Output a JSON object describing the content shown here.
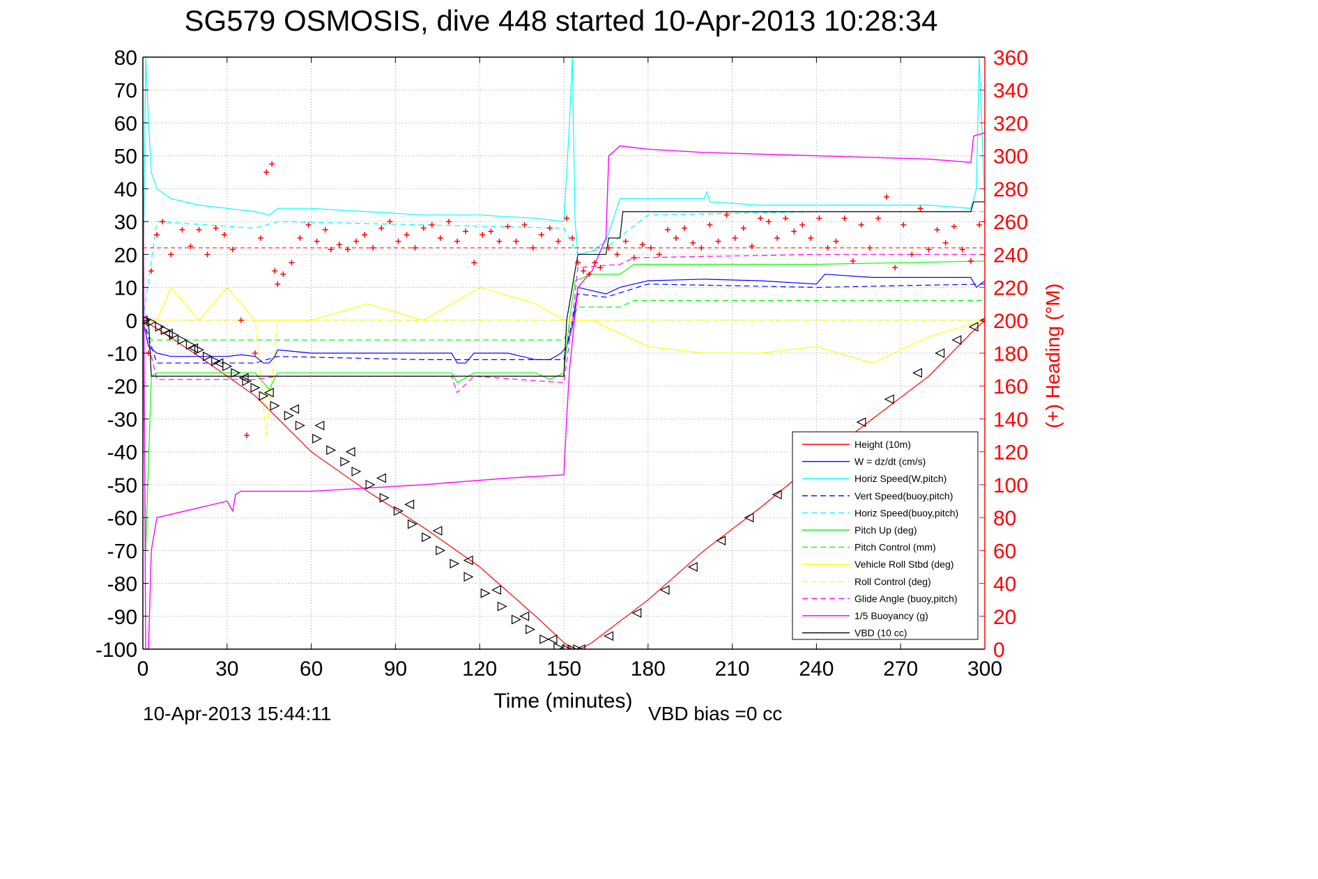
{
  "chart_data": {
    "type": "line",
    "title": "SG579 OSMOSIS, dive 448 started 10-Apr-2013 10:28:34",
    "xlabel": "Time (minutes)",
    "ylabel": "",
    "y2label": "(+) Heading (°M)",
    "xlim": [
      0,
      300
    ],
    "ylim": [
      -100,
      80
    ],
    "y2lim": [
      0,
      360
    ],
    "xticks": [
      "0",
      "30",
      "60",
      "90",
      "120",
      "150",
      "180",
      "210",
      "240",
      "270",
      "300"
    ],
    "yticks": [
      "80",
      "70",
      "60",
      "50",
      "40",
      "30",
      "20",
      "10",
      "0",
      "-10",
      "-20",
      "-30",
      "-40",
      "-50",
      "-60",
      "-70",
      "-80",
      "-90",
      "-100"
    ],
    "y2ticks": [
      "360",
      "340",
      "320",
      "300",
      "280",
      "260",
      "240",
      "220",
      "200",
      "180",
      "160",
      "140",
      "120",
      "100",
      "80",
      "60",
      "40",
      "20",
      "0"
    ],
    "grid": true,
    "legend_position": "bottom-right",
    "bottom_left_text": "10-Apr-2013 15:44:11",
    "bottom_right_text": "VBD bias =0 cc",
    "colors": {
      "height": "#ff0000",
      "w": "#0000ff",
      "horiz_speed": "#00ffff",
      "pitch": "#00ff00",
      "roll": "#ffff00",
      "glide": "#ff00ff",
      "buoyancy": "#ff00ff",
      "vbd": "#000000",
      "heading": "#ff0000",
      "right_axis": "#ff0000"
    },
    "series": [
      {
        "key": "height",
        "name": "Height (10m)",
        "color": "#ff0000",
        "style": "solid",
        "width": 1,
        "x": [
          0,
          5,
          20,
          40,
          60,
          80,
          100,
          120,
          140,
          150,
          153,
          156,
          160,
          180,
          200,
          220,
          240,
          260,
          280,
          295,
          300
        ],
        "y": [
          0,
          -2.5,
          -11,
          -23,
          -40,
          -52,
          -63,
          -75,
          -90,
          -98,
          -100,
          -100,
          -98,
          -85,
          -70,
          -57,
          -43,
          -30,
          -17,
          -4,
          0
        ]
      },
      {
        "key": "w",
        "name": "W = dz/dt (cm/s)",
        "color": "#0000ff",
        "style": "solid",
        "width": 1,
        "x": [
          0,
          2,
          5,
          10,
          20,
          30,
          35,
          40,
          43,
          45,
          47,
          48,
          60,
          80,
          100,
          110,
          112,
          115,
          118,
          130,
          140,
          145,
          149,
          151,
          153,
          155,
          160,
          165,
          170,
          180,
          200,
          220,
          240,
          243,
          260,
          280,
          295,
          297,
          300
        ],
        "y": [
          0,
          -8,
          -10,
          -11,
          -11,
          -11,
          -10.5,
          -11,
          -13,
          -13,
          -11,
          -9,
          -10,
          -10,
          -10,
          -10,
          -13,
          -13,
          -10,
          -10,
          -12,
          -12,
          -10,
          -8,
          -2,
          10,
          9,
          8,
          10,
          12,
          12.5,
          12,
          11,
          14,
          13,
          13,
          13,
          10,
          12
        ]
      },
      {
        "key": "horiz_speed",
        "name": "Horiz Speed(W,pitch)",
        "color": "#00ffff",
        "style": "solid",
        "width": 1,
        "x": [
          0,
          1,
          2,
          3,
          5,
          10,
          20,
          30,
          40,
          45,
          48,
          60,
          80,
          100,
          120,
          140,
          150,
          152,
          153,
          154,
          155,
          160,
          165,
          170,
          180,
          200,
          201,
          202,
          220,
          240,
          260,
          280,
          295,
          297,
          298,
          300
        ],
        "y": [
          0,
          80,
          60,
          45,
          40,
          37,
          35,
          34,
          33,
          32,
          34,
          34,
          33,
          32,
          32,
          31,
          30,
          60,
          80,
          30,
          20,
          21,
          24,
          37,
          37,
          37,
          39,
          36,
          35,
          35,
          35,
          35,
          34,
          40,
          80,
          35
        ]
      },
      {
        "key": "vert_speed_buoy",
        "name": "Vert Speed(buoy,pitch)",
        "color": "#0000ff",
        "style": "dashed",
        "width": 1,
        "x": [
          0,
          5,
          40,
          48,
          100,
          150,
          155,
          165,
          180,
          240,
          300
        ],
        "y": [
          0,
          -13,
          -13,
          -11,
          -12,
          -12,
          8,
          7,
          11,
          10,
          11
        ]
      },
      {
        "key": "horiz_speed_buoy",
        "name": "Horiz Speed(buoy,pitch)",
        "color": "#00ffff",
        "style": "dashed",
        "width": 1,
        "x": [
          0,
          5,
          40,
          48,
          100,
          150,
          155,
          165,
          180,
          240,
          300
        ],
        "y": [
          0,
          30,
          28,
          30,
          29,
          28,
          20,
          22,
          32,
          33,
          33
        ]
      },
      {
        "key": "pitch_up",
        "name": "Pitch Up (deg)",
        "color": "#00ff00",
        "style": "solid",
        "width": 1,
        "x": [
          0,
          1,
          3,
          5,
          40,
          45,
          48,
          100,
          110,
          112,
          118,
          140,
          145,
          150,
          152,
          154,
          160,
          170,
          175,
          240,
          300
        ],
        "y": [
          0,
          -70,
          -17,
          -16,
          -16,
          -21,
          -16,
          -16,
          -16,
          -19,
          -16,
          -16,
          -18,
          -16,
          0,
          12,
          14,
          14,
          17,
          17,
          18
        ]
      },
      {
        "key": "pitch_control",
        "name": "Pitch Control (mm)",
        "color": "#00ff00",
        "style": "dashed",
        "width": 1,
        "x": [
          0,
          3,
          10,
          40,
          150,
          153,
          155,
          170,
          175,
          240,
          300
        ],
        "y": [
          0,
          -6,
          -6,
          -6,
          -6,
          0,
          4,
          4,
          6,
          6,
          6
        ]
      },
      {
        "key": "vehicle_roll",
        "name": "Vehicle Roll Stbd (deg)",
        "color": "#ffff00",
        "style": "solid",
        "width": 1,
        "x": [
          0,
          2,
          5,
          10,
          20,
          30,
          40,
          50,
          60,
          80,
          100,
          120,
          140,
          150,
          152,
          155,
          160,
          180,
          200,
          220,
          240,
          260,
          280,
          300
        ],
        "y": [
          0,
          0,
          0,
          10,
          0,
          10,
          0,
          0,
          0,
          5,
          0,
          10,
          5,
          0,
          0,
          0,
          0,
          -8,
          -10,
          -10,
          -8,
          -13,
          -5,
          0
        ]
      },
      {
        "key": "roll_control",
        "name": "Roll Control (deg)",
        "color": "#ffff00",
        "style": "dashed",
        "width": 1,
        "x": [
          0,
          40,
          44,
          48,
          150,
          155,
          240,
          300
        ],
        "y": [
          0,
          0,
          -35,
          0,
          0,
          0,
          0,
          0
        ]
      },
      {
        "key": "glide_angle",
        "name": "Glide Angle (buoy,pitch)",
        "color": "#ff00ff",
        "style": "dashed",
        "width": 1,
        "x": [
          0,
          5,
          40,
          48,
          110,
          112,
          118,
          150,
          153,
          155,
          170,
          175,
          240,
          300
        ],
        "y": [
          0,
          -18,
          -18,
          -17,
          -17,
          -22,
          -17,
          -19,
          0,
          16,
          17,
          19,
          20,
          20
        ]
      },
      {
        "key": "buoyancy",
        "name": "1/5 Buoyancy (g)",
        "color": "#ff00ff",
        "style": "solid",
        "width": 1,
        "x": [
          0,
          1,
          2,
          3,
          5,
          10,
          20,
          30,
          32,
          33,
          35,
          40,
          60,
          80,
          100,
          130,
          150,
          151,
          152,
          155,
          160,
          165,
          166,
          170,
          180,
          200,
          240,
          280,
          295,
          296,
          300
        ],
        "y": [
          60,
          -100,
          -100,
          -70,
          -60,
          -59,
          -57,
          -55,
          -58,
          -53,
          -52,
          -52,
          -52,
          -51,
          -50,
          -48,
          -47,
          -30,
          -15,
          10,
          15,
          25,
          50,
          53,
          52,
          51,
          50,
          49,
          48,
          56,
          57
        ]
      },
      {
        "key": "vbd",
        "name": "VBD (10 cc)",
        "color": "#000000",
        "style": "solid",
        "width": 1,
        "x": [
          0,
          2,
          3,
          150,
          151,
          155,
          160,
          165,
          166,
          170,
          171,
          295,
          296,
          300
        ],
        "y": [
          0,
          0,
          -17,
          -17,
          0,
          20,
          20,
          20,
          25,
          25,
          33,
          33,
          36,
          36
        ]
      }
    ],
    "heading_series": {
      "name": "(+) Heading",
      "color": "#ff0000",
      "axis": "right",
      "reference_value": 244,
      "x": [
        2,
        3,
        5,
        7,
        10,
        14,
        17,
        20,
        23,
        26,
        29,
        32,
        35,
        37,
        40,
        42,
        44,
        46,
        47,
        48,
        50,
        53,
        56,
        59,
        62,
        65,
        67,
        70,
        73,
        76,
        79,
        82,
        85,
        88,
        91,
        94,
        97,
        100,
        103,
        106,
        109,
        112,
        115,
        118,
        121,
        124,
        127,
        130,
        133,
        136,
        139,
        142,
        145,
        148,
        151,
        153,
        155,
        157,
        159,
        161,
        163,
        166,
        169,
        172,
        175,
        178,
        181,
        184,
        187,
        190,
        193,
        196,
        199,
        202,
        205,
        208,
        211,
        214,
        217,
        220,
        223,
        226,
        229,
        232,
        235,
        238,
        241,
        244,
        247,
        250,
        253,
        256,
        259,
        262,
        265,
        268,
        271,
        274,
        277,
        280,
        283,
        286,
        289,
        292,
        295,
        298,
        300
      ],
      "y": [
        180,
        230,
        252,
        260,
        240,
        255,
        245,
        255,
        240,
        256,
        252,
        243,
        200,
        130,
        180,
        250,
        290,
        295,
        230,
        222,
        228,
        235,
        250,
        258,
        248,
        255,
        243,
        246,
        243,
        248,
        252,
        244,
        256,
        260,
        248,
        252,
        244,
        256,
        258,
        250,
        260,
        248,
        254,
        235,
        252,
        254,
        248,
        257,
        248,
        258,
        244,
        252,
        256,
        248,
        262,
        250,
        235,
        230,
        228,
        235,
        232,
        244,
        240,
        248,
        238,
        246,
        244,
        240,
        255,
        250,
        256,
        247,
        244,
        258,
        248,
        264,
        250,
        256,
        245,
        262,
        260,
        250,
        262,
        254,
        258,
        250,
        262,
        244,
        248,
        262,
        236,
        258,
        244,
        262,
        275,
        232,
        258,
        240,
        268,
        243,
        255,
        247,
        257,
        243,
        236,
        258,
        260
      ]
    },
    "triangle_markers": {
      "color": "#000000",
      "right": [
        [
          1,
          0
        ],
        [
          3,
          -0.5
        ],
        [
          6,
          -2
        ],
        [
          8,
          -3
        ],
        [
          11,
          -4.5
        ],
        [
          14,
          -6
        ],
        [
          17,
          -7.5
        ],
        [
          20,
          -9
        ],
        [
          23,
          -11
        ],
        [
          26,
          -12.5
        ],
        [
          30,
          -14
        ],
        [
          33,
          -16
        ],
        [
          37,
          -18.5
        ],
        [
          40,
          -20.5
        ],
        [
          43,
          -23
        ],
        [
          47,
          -26
        ],
        [
          52,
          -29
        ],
        [
          56,
          -32
        ],
        [
          62,
          -36
        ],
        [
          67,
          -39.5
        ],
        [
          72,
          -43
        ],
        [
          76,
          -46
        ],
        [
          81,
          -50
        ],
        [
          86,
          -54
        ],
        [
          91,
          -58
        ],
        [
          96,
          -62
        ],
        [
          101,
          -66
        ],
        [
          106,
          -70
        ],
        [
          111,
          -74
        ],
        [
          116,
          -78
        ],
        [
          122,
          -83
        ],
        [
          128,
          -87
        ],
        [
          133,
          -91
        ],
        [
          138,
          -94
        ],
        [
          143,
          -97
        ],
        [
          148,
          -99.5
        ],
        [
          151,
          -100
        ],
        [
          153,
          -100
        ],
        [
          155,
          -100
        ]
      ],
      "left": [
        [
          0,
          0
        ],
        [
          9,
          -4
        ],
        [
          18,
          -8.5
        ],
        [
          27,
          -13
        ],
        [
          36,
          -17.5
        ],
        [
          45,
          -22
        ],
        [
          54,
          -27
        ],
        [
          63,
          -32
        ],
        [
          74,
          -40
        ],
        [
          85,
          -48
        ],
        [
          95,
          -56
        ],
        [
          105,
          -64
        ],
        [
          116,
          -73
        ],
        [
          126,
          -82
        ],
        [
          136,
          -90
        ],
        [
          146,
          -97
        ],
        [
          156,
          -100
        ],
        [
          166,
          -96
        ],
        [
          176,
          -89
        ],
        [
          186,
          -82
        ],
        [
          196,
          -75
        ],
        [
          206,
          -67
        ],
        [
          216,
          -60
        ],
        [
          226,
          -53
        ],
        [
          236,
          -46
        ],
        [
          246,
          -39
        ],
        [
          256,
          -31
        ],
        [
          266,
          -24
        ],
        [
          276,
          -16
        ],
        [
          284,
          -10
        ],
        [
          290,
          -6
        ],
        [
          296,
          -2
        ],
        [
          300,
          0
        ]
      ]
    }
  }
}
